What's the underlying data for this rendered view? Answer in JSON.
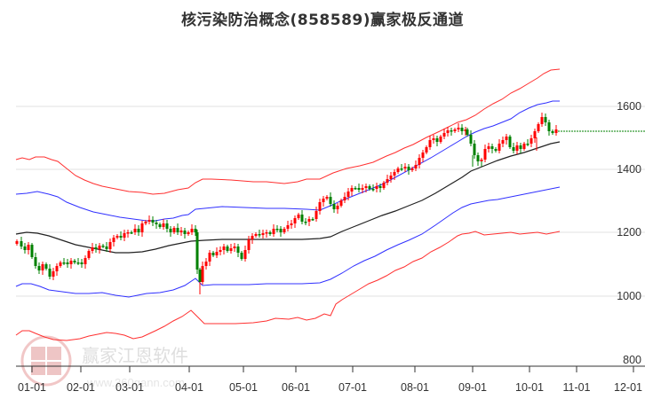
{
  "title": "核污染防治概念(858589)赢家极反通道",
  "watermark": {
    "brand": "赢家江恩软件",
    "url": "www.360gann.com",
    "seal_chars": [
      "江",
      "赢",
      "恩",
      "家"
    ]
  },
  "colors": {
    "up_candle": "#ff0000",
    "down_candle": "#008000",
    "outer_band": "#ff3333",
    "inner_band": "#3333ff",
    "middle_line": "#222222",
    "projection": "#008000",
    "grid": "#e0e0e0"
  },
  "chart_data": {
    "type": "candlestick",
    "title": "核污染防治概念(858589)赢家极反通道",
    "xlabel": "",
    "ylabel": "",
    "ylim": [
      800,
      1700
    ],
    "grid": true,
    "y_ticks": [
      1600,
      1400,
      1200,
      1000,
      800
    ],
    "x_ticks": [
      "01-01",
      "02-01",
      "03-01",
      "04-01",
      "05-01",
      "06-01",
      "07-01",
      "08-01",
      "09-01",
      "10-01",
      "11-01",
      "12-01"
    ],
    "series": [
      {
        "name": "upper_outer_band",
        "color": "red",
        "points": [
          [
            "01-01",
            1440
          ],
          [
            "01-15",
            1445
          ],
          [
            "02-01",
            1420
          ],
          [
            "02-15",
            1380
          ],
          [
            "03-01",
            1345
          ],
          [
            "03-15",
            1340
          ],
          [
            "04-01",
            1350
          ],
          [
            "04-05",
            1380
          ],
          [
            "04-10",
            1385
          ],
          [
            "05-01",
            1380
          ],
          [
            "06-01",
            1375
          ],
          [
            "06-20",
            1370
          ],
          [
            "07-01",
            1380
          ],
          [
            "07-15",
            1395
          ],
          [
            "08-01",
            1430
          ],
          [
            "08-20",
            1480
          ],
          [
            "09-01",
            1520
          ],
          [
            "09-20",
            1590
          ],
          [
            "10-01",
            1640
          ],
          [
            "10-15",
            1700
          ],
          [
            "10-25",
            1735
          ]
        ]
      },
      {
        "name": "upper_inner_band",
        "color": "blue",
        "points": [
          [
            "01-01",
            1340
          ],
          [
            "01-15",
            1345
          ],
          [
            "02-01",
            1320
          ],
          [
            "02-15",
            1285
          ],
          [
            "03-01",
            1260
          ],
          [
            "03-15",
            1255
          ],
          [
            "04-01",
            1265
          ],
          [
            "04-05",
            1290
          ],
          [
            "04-10",
            1295
          ],
          [
            "05-01",
            1290
          ],
          [
            "06-01",
            1285
          ],
          [
            "06-20",
            1280
          ],
          [
            "07-01",
            1300
          ],
          [
            "07-15",
            1330
          ],
          [
            "08-01",
            1370
          ],
          [
            "08-20",
            1420
          ],
          [
            "09-01",
            1470
          ],
          [
            "09-20",
            1520
          ],
          [
            "10-01",
            1570
          ],
          [
            "10-15",
            1615
          ],
          [
            "10-25",
            1630
          ]
        ]
      },
      {
        "name": "middle_line",
        "color": "black",
        "points": [
          [
            "01-01",
            1215
          ],
          [
            "01-15",
            1212
          ],
          [
            "02-01",
            1195
          ],
          [
            "02-15",
            1175
          ],
          [
            "03-01",
            1160
          ],
          [
            "03-15",
            1158
          ],
          [
            "04-01",
            1170
          ],
          [
            "04-15",
            1190
          ],
          [
            "05-01",
            1198
          ],
          [
            "06-01",
            1198
          ],
          [
            "06-20",
            1200
          ],
          [
            "07-01",
            1215
          ],
          [
            "07-15",
            1250
          ],
          [
            "08-01",
            1300
          ],
          [
            "08-20",
            1360
          ],
          [
            "09-01",
            1420
          ],
          [
            "09-20",
            1460
          ],
          [
            "10-01",
            1490
          ],
          [
            "10-25",
            1515
          ]
        ]
      },
      {
        "name": "lower_inner_band",
        "color": "blue",
        "points": [
          [
            "01-01",
            1045
          ],
          [
            "01-15",
            1040
          ],
          [
            "02-01",
            1020
          ],
          [
            "02-15",
            1010
          ],
          [
            "03-01",
            1005
          ],
          [
            "03-15",
            1015
          ],
          [
            "04-01",
            1040
          ],
          [
            "04-05",
            1065
          ],
          [
            "04-10",
            1045
          ],
          [
            "05-01",
            1045
          ],
          [
            "06-01",
            1050
          ],
          [
            "06-20",
            1055
          ],
          [
            "07-01",
            1080
          ],
          [
            "07-15",
            1110
          ],
          [
            "08-01",
            1160
          ],
          [
            "08-20",
            1220
          ],
          [
            "09-01",
            1290
          ],
          [
            "09-10",
            1320
          ],
          [
            "09-20",
            1330
          ],
          [
            "10-01",
            1340
          ],
          [
            "10-25",
            1360
          ]
        ]
      },
      {
        "name": "lower_outer_band",
        "color": "red",
        "points": [
          [
            "01-01",
            895
          ],
          [
            "01-15",
            895
          ],
          [
            "02-01",
            880
          ],
          [
            "02-15",
            878
          ],
          [
            "03-01",
            890
          ],
          [
            "03-15",
            883
          ],
          [
            "04-01",
            915
          ],
          [
            "04-05",
            945
          ],
          [
            "04-10",
            915
          ],
          [
            "05-01",
            918
          ],
          [
            "06-01",
            928
          ],
          [
            "06-20",
            935
          ],
          [
            "07-01",
            950
          ],
          [
            "07-15",
            1010
          ],
          [
            "08-01",
            1065
          ],
          [
            "08-20",
            1110
          ],
          [
            "09-01",
            1170
          ],
          [
            "09-10",
            1210
          ],
          [
            "09-20",
            1205
          ],
          [
            "10-01",
            1210
          ],
          [
            "10-25",
            1220
          ]
        ]
      },
      {
        "name": "price_candles",
        "color": "red/green",
        "points": [
          [
            "01-01",
            1200
          ],
          [
            "01-10",
            1160
          ],
          [
            "01-20",
            1080
          ],
          [
            "02-01",
            1110
          ],
          [
            "02-15",
            1160
          ],
          [
            "03-01",
            1220
          ],
          [
            "03-15",
            1245
          ],
          [
            "03-25",
            1200
          ],
          [
            "04-01",
            1220
          ],
          [
            "04-05",
            1060
          ],
          [
            "04-15",
            1160
          ],
          [
            "05-01",
            1150
          ],
          [
            "05-05",
            1195
          ],
          [
            "06-01",
            1225
          ],
          [
            "06-15",
            1270
          ],
          [
            "06-25",
            1290
          ],
          [
            "07-01",
            1300
          ],
          [
            "07-15",
            1360
          ],
          [
            "08-01",
            1400
          ],
          [
            "08-10",
            1420
          ],
          [
            "08-20",
            1510
          ],
          [
            "09-01",
            1560
          ],
          [
            "09-05",
            1480
          ],
          [
            "09-15",
            1440
          ],
          [
            "10-01",
            1510
          ],
          [
            "10-10",
            1580
          ],
          [
            "10-20",
            1530
          ],
          [
            "10-25",
            1540
          ]
        ]
      },
      {
        "name": "projection",
        "color": "green",
        "style": "dotted",
        "points": [
          [
            "10-25",
            1535
          ],
          [
            "12-01",
            1535
          ]
        ]
      }
    ]
  }
}
